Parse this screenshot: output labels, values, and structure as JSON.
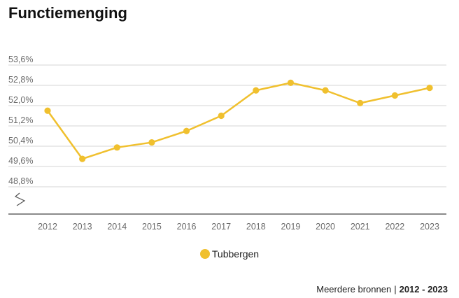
{
  "header": {
    "title": "Functiemenging"
  },
  "chart_data": {
    "type": "line",
    "title": "Functiemenging",
    "xlabel": "",
    "ylabel": "",
    "categories": [
      "2012",
      "2013",
      "2014",
      "2015",
      "2016",
      "2017",
      "2018",
      "2019",
      "2020",
      "2021",
      "2022",
      "2023"
    ],
    "series": [
      {
        "name": "Tubbergen",
        "color": "#f0c02e",
        "values": [
          51.8,
          49.9,
          50.35,
          50.55,
          51.0,
          51.6,
          52.6,
          52.9,
          52.6,
          52.1,
          52.4,
          52.7
        ]
      }
    ],
    "y_ticks": [
      53.6,
      52.8,
      52.0,
      51.2,
      50.4,
      49.6,
      48.8
    ],
    "y_tick_labels": [
      "53,6%",
      "52,8%",
      "52,0%",
      "51,2%",
      "50,4%",
      "49,6%",
      "48,8%"
    ],
    "ylim": [
      48.8,
      53.6
    ],
    "axis_break": true,
    "grid": true,
    "legend": "bottom-center"
  },
  "legend": {
    "label": "Tubbergen",
    "color": "#f0c02e"
  },
  "source": {
    "text": "Meerdere bronnen",
    "separator": "|",
    "years": "2012 - 2023"
  }
}
